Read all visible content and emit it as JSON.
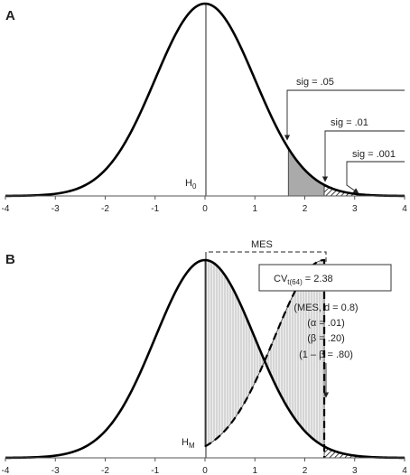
{
  "chart_data": [
    {
      "type": "line",
      "panel_label": "A",
      "xlim": [
        -4,
        4
      ],
      "x_ticks": [
        "-4",
        "-3",
        "-2",
        "-1",
        "0",
        "1",
        "2",
        "3",
        "4"
      ],
      "series": [
        {
          "distribution": "normal",
          "mean": 0,
          "sd": 1
        }
      ],
      "mean_line_x": 0,
      "shaded_regions": [
        {
          "from": 1.67,
          "to": 2.39,
          "fill": "#aaaaaa"
        },
        {
          "from": 2.39,
          "to": 4,
          "fill": "hatch"
        }
      ],
      "hypothesis_label": "H",
      "hypothesis_sub": "0",
      "annotations": [
        {
          "text": "sig = .05",
          "x": 1.67
        },
        {
          "text": "sig = .01",
          "x": 2.39
        },
        {
          "text": "sig = .001",
          "x": 3.0
        }
      ]
    },
    {
      "type": "line",
      "panel_label": "B",
      "xlim": [
        -4,
        4
      ],
      "x_ticks": [
        "-4",
        "-3",
        "-2",
        "-1",
        "0",
        "1",
        "2",
        "3",
        "4"
      ],
      "series": [
        {
          "distribution": "normal",
          "mean": 0,
          "sd": 1,
          "style": "solid"
        },
        {
          "distribution": "normal_segment",
          "mean": 2.39,
          "sd": 1,
          "from": 0,
          "to": 2.39,
          "style": "dashed"
        }
      ],
      "mean_line_x": 0,
      "critical_value_x": 2.38,
      "shaded_regions": [
        {
          "from": 0,
          "to": 2.39,
          "fill": "#dddddd"
        },
        {
          "from": 2.39,
          "to": 4,
          "fill": "hatch"
        }
      ],
      "hypothesis_label": "H",
      "hypothesis_sub": "M",
      "mes_label": "MES",
      "cv_box": {
        "prefix": "CV",
        "sub": "t(64)",
        "value": " = 2.38"
      },
      "notes": [
        "(MES, d = 0.8)",
        "(α = .01)",
        "(β = .20)",
        "(1 – β = .80)"
      ]
    }
  ]
}
